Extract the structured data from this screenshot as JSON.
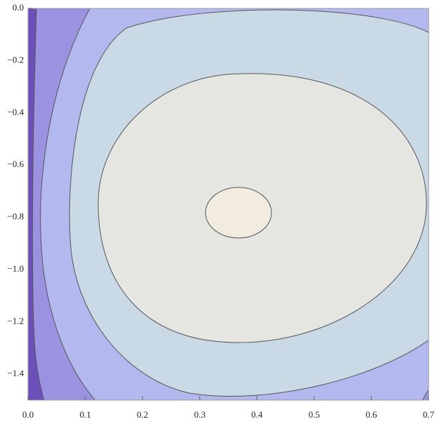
{
  "chart_data": {
    "type": "contour",
    "xlim": [
      0,
      0.7
    ],
    "ylim": [
      -1.5,
      0
    ],
    "xticks": [
      {
        "value": 0,
        "label": "0.0"
      },
      0.1,
      0.2,
      0.3,
      0.4,
      0.5,
      0.6,
      0.7
    ],
    "yticks": [
      {
        "value": 0,
        "label": "0.0"
      },
      {
        "value": -0.2,
        "label": "−0.2"
      },
      {
        "value": -0.4,
        "label": "−0.4"
      },
      {
        "value": -0.6,
        "label": "−0.6"
      },
      {
        "value": -0.8,
        "label": "−0.8"
      },
      {
        "value": -1,
        "label": "−1.0"
      },
      {
        "value": -1.2,
        "label": "−1.2"
      },
      {
        "value": -1.4,
        "label": "−1.4"
      }
    ]
  }
}
